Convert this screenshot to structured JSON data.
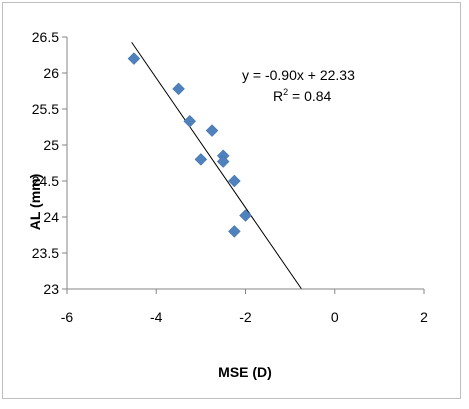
{
  "chart_data": {
    "type": "scatter",
    "title": "",
    "xlabel": "MSE (D)",
    "ylabel": "AL (mm)",
    "xlim": [
      -6,
      2
    ],
    "ylim": [
      23,
      26.5
    ],
    "x_ticks": [
      "-6",
      "-4",
      "-2",
      "0",
      "2"
    ],
    "y_ticks": [
      "23",
      "23.5",
      "24",
      "24.5",
      "25",
      "25.5",
      "26",
      "26.5"
    ],
    "grid": false,
    "legend": "none",
    "series": [
      {
        "marker": "diamond",
        "color": "#4f81bd",
        "points": [
          {
            "x": -4.5,
            "y": 26.2
          },
          {
            "x": -3.5,
            "y": 25.78
          },
          {
            "x": -3.25,
            "y": 25.33
          },
          {
            "x": -2.75,
            "y": 25.2
          },
          {
            "x": -3.0,
            "y": 24.8
          },
          {
            "x": -2.5,
            "y": 24.85
          },
          {
            "x": -2.5,
            "y": 24.77
          },
          {
            "x": -2.25,
            "y": 24.5
          },
          {
            "x": -2.0,
            "y": 24.02
          },
          {
            "x": -2.25,
            "y": 23.8
          }
        ]
      }
    ],
    "trendline": {
      "slope": -0.9,
      "intercept": 22.33,
      "x_range": [
        -4.55,
        -0.75
      ],
      "color": "#000000"
    },
    "annotations": {
      "equation": "y = -0.90x + 22.33",
      "r2_prefix": "R",
      "r2_sup": "2",
      "r2_suffix": " = 0.84"
    }
  }
}
